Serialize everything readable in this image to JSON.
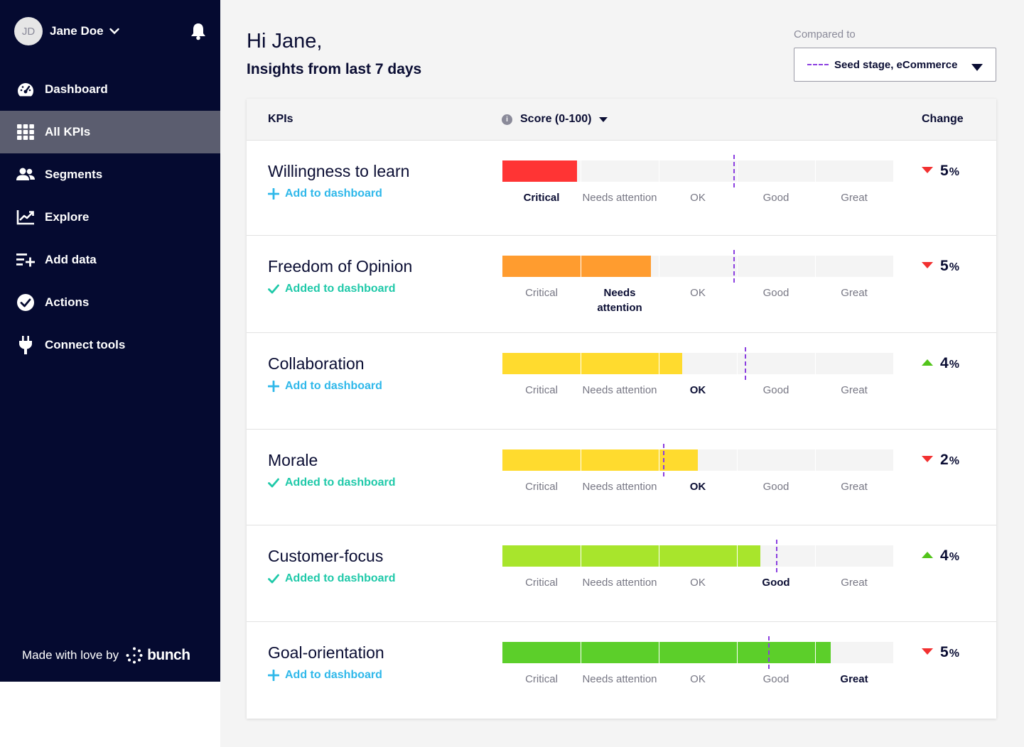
{
  "user": {
    "initials": "JD",
    "name": "Jane Doe"
  },
  "nav": [
    {
      "label": "Dashboard",
      "icon": "gauge-icon",
      "active": false
    },
    {
      "label": "All KPIs",
      "icon": "grid-icon",
      "active": true
    },
    {
      "label": "Segments",
      "icon": "users-icon",
      "active": false
    },
    {
      "label": "Explore",
      "icon": "chart-line-icon",
      "active": false
    },
    {
      "label": "Add data",
      "icon": "add-list-icon",
      "active": false
    },
    {
      "label": "Actions",
      "icon": "check-circle-icon",
      "active": false
    },
    {
      "label": "Connect tools",
      "icon": "plug-icon",
      "active": false
    }
  ],
  "footer": {
    "made_with": "Made with love by",
    "brand": "bunch"
  },
  "header": {
    "greeting": "Hi Jane,",
    "subtitle": "Insights from last 7 days"
  },
  "compare": {
    "label": "Compared to",
    "value": "Seed stage, eCommerce"
  },
  "table": {
    "col_kpi": "KPIs",
    "col_score": "Score (0-100)",
    "col_change": "Change"
  },
  "levels": [
    "Critical",
    "Needs attention",
    "OK",
    "Good",
    "Great"
  ],
  "colors": {
    "critical": "#ff3434",
    "needs_attention": "#ff9c2f",
    "ok": "#ffdb2e",
    "good_light": "#a8e52c",
    "great": "#5ccf2a",
    "compare_mark": "#8b3fe0",
    "add_link": "#2fb8ea",
    "added_link": "#1fc9a9"
  },
  "kpis": [
    {
      "name": "Willingness to learn",
      "dashboard_label": "Add to dashboard",
      "added": false,
      "score": 19,
      "benchmark": 59,
      "level": 0,
      "color": "#ff3434",
      "change": "5",
      "unit": "%",
      "direction": "down"
    },
    {
      "name": "Freedom of Opinion",
      "dashboard_label": "Added to dashboard",
      "added": true,
      "score": 38,
      "benchmark": 59,
      "level": 1,
      "color": "#ff9c2f",
      "change": "5",
      "unit": "%",
      "direction": "down"
    },
    {
      "name": "Collaboration",
      "dashboard_label": "Add to dashboard",
      "added": false,
      "score": 46,
      "benchmark": 62,
      "level": 2,
      "color": "#ffdb2e",
      "change": "4",
      "unit": "%",
      "direction": "up"
    },
    {
      "name": "Morale",
      "dashboard_label": "Added to dashboard",
      "added": true,
      "score": 50,
      "benchmark": 41,
      "level": 2,
      "color": "#ffdb2e",
      "change": "2",
      "unit": "%",
      "direction": "down"
    },
    {
      "name": "Customer-focus",
      "dashboard_label": "Added to dashboard",
      "added": true,
      "score": 66,
      "benchmark": 70,
      "level": 3,
      "color": "#a8e52c",
      "change": "4",
      "unit": "%",
      "direction": "up"
    },
    {
      "name": "Goal-orientation",
      "dashboard_label": "Add to dashboard",
      "added": false,
      "score": 84,
      "benchmark": 68,
      "level": 4,
      "color": "#5ccf2a",
      "change": "5",
      "unit": "%",
      "direction": "down"
    }
  ]
}
